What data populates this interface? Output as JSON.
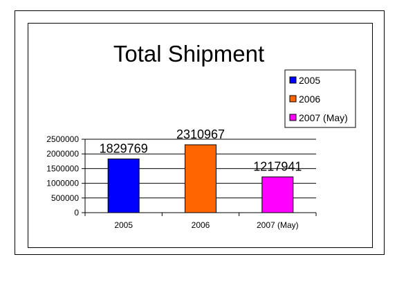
{
  "chart_data": {
    "type": "bar",
    "title": "Total Shipment",
    "categories": [
      "2005",
      "2006",
      "2007 (May)"
    ],
    "values": [
      1829769,
      2310967,
      1217941
    ],
    "colors": [
      "#0000ff",
      "#ff6600",
      "#ff00ff"
    ],
    "ylim": [
      0,
      2500000
    ],
    "yticks": [
      0,
      500000,
      1000000,
      1500000,
      2000000,
      2500000
    ],
    "ytick_labels": [
      "0",
      "500000",
      "1000000",
      "1500000",
      "2000000",
      "2500000"
    ],
    "data_labels": [
      "1829769",
      "2310967",
      "1217941"
    ],
    "grid": true,
    "legend": {
      "position": "right",
      "entries": [
        {
          "label": "2005",
          "color": "#0000ff"
        },
        {
          "label": "2006",
          "color": "#ff6600"
        },
        {
          "label": "2007 (May)",
          "color": "#ff00ff"
        }
      ]
    }
  }
}
